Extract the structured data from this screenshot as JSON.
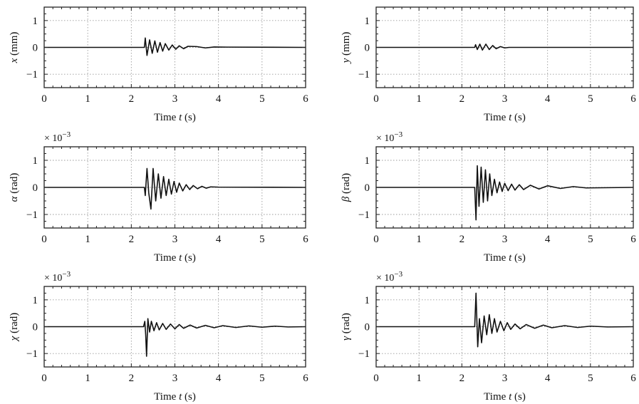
{
  "chart_data": [
    {
      "type": "line",
      "id": "x",
      "ylabel": "x (mm)",
      "ylabel_var": "x",
      "ylabel_unit": " (mm)",
      "xlabel": "Time t (s)",
      "xlabel_pre": "Time ",
      "xlabel_var": "t",
      "xlabel_post": " (s)",
      "multiplier": "",
      "xlim": [
        0,
        6
      ],
      "ylim": [
        -1.5,
        1.5
      ],
      "xticks": [
        0,
        1,
        2,
        3,
        4,
        5,
        6
      ],
      "yticks": [
        -1,
        0,
        1
      ],
      "grid": true,
      "series": [
        {
          "x": [
            0,
            2.3,
            2.32,
            2.36,
            2.42,
            2.48,
            2.54,
            2.6,
            2.66,
            2.72,
            2.78,
            2.86,
            2.94,
            3.02,
            3.1,
            3.2,
            3.3,
            3.5,
            3.7,
            3.9,
            4.2,
            6
          ],
          "values": [
            0,
            0,
            0.35,
            -0.3,
            0.28,
            -0.22,
            0.24,
            -0.18,
            0.18,
            -0.14,
            0.14,
            -0.1,
            0.09,
            -0.07,
            0.06,
            -0.05,
            0.04,
            0.03,
            -0.02,
            0.015,
            0.01,
            0
          ]
        }
      ]
    },
    {
      "type": "line",
      "id": "y",
      "ylabel": "y (mm)",
      "ylabel_var": "y",
      "ylabel_unit": " (mm)",
      "xlabel": "Time t (s)",
      "xlabel_pre": "Time ",
      "xlabel_var": "t",
      "xlabel_post": " (s)",
      "multiplier": "",
      "xlim": [
        0,
        6
      ],
      "ylim": [
        -1.5,
        1.5
      ],
      "xticks": [
        0,
        1,
        2,
        3,
        4,
        5,
        6
      ],
      "yticks": [
        -1,
        0,
        1
      ],
      "grid": true,
      "series": [
        {
          "x": [
            0,
            2.3,
            2.32,
            2.36,
            2.42,
            2.48,
            2.56,
            2.64,
            2.72,
            2.8,
            2.9,
            3.0,
            3.1,
            6
          ],
          "values": [
            0,
            0,
            0.1,
            -0.08,
            0.12,
            -0.1,
            0.12,
            -0.08,
            0.07,
            -0.05,
            0.03,
            -0.02,
            0,
            0
          ]
        }
      ]
    },
    {
      "type": "line",
      "id": "alpha",
      "ylabel": "α (rad)",
      "ylabel_var": "α",
      "ylabel_unit": " (rad)",
      "xlabel": "Time t (s)",
      "xlabel_pre": "Time ",
      "xlabel_var": "t",
      "xlabel_post": " (s)",
      "multiplier": "× 10",
      "multiplier_exp": "−3",
      "xlim": [
        0,
        6
      ],
      "ylim": [
        -1.5,
        1.5
      ],
      "xticks": [
        0,
        1,
        2,
        3,
        4,
        5,
        6
      ],
      "yticks": [
        -1,
        0,
        1
      ],
      "grid": true,
      "series": [
        {
          "x": [
            0,
            2.3,
            2.32,
            2.36,
            2.4,
            2.45,
            2.5,
            2.56,
            2.62,
            2.68,
            2.74,
            2.8,
            2.86,
            2.92,
            2.98,
            3.04,
            3.1,
            3.18,
            3.26,
            3.34,
            3.42,
            3.52,
            3.62,
            3.72,
            3.82,
            4.0,
            6
          ],
          "values": [
            0,
            0,
            -0.3,
            0.7,
            -0.2,
            -0.8,
            0.7,
            -0.5,
            0.5,
            -0.4,
            0.4,
            -0.3,
            0.3,
            -0.25,
            0.22,
            -0.18,
            0.16,
            -0.13,
            0.1,
            -0.08,
            0.07,
            -0.05,
            0.04,
            -0.03,
            0.02,
            0.01,
            0
          ]
        }
      ]
    },
    {
      "type": "line",
      "id": "beta",
      "ylabel": "β (rad)",
      "ylabel_var": "β",
      "ylabel_unit": " (rad)",
      "xlabel": "Time t (s)",
      "xlabel_pre": "Time ",
      "xlabel_var": "t",
      "xlabel_post": " (s)",
      "multiplier": "× 10",
      "multiplier_exp": "−3",
      "xlim": [
        0,
        6
      ],
      "ylim": [
        -1.5,
        1.5
      ],
      "xticks": [
        0,
        1,
        2,
        3,
        4,
        5,
        6
      ],
      "yticks": [
        -1,
        0,
        1
      ],
      "grid": true,
      "series": [
        {
          "x": [
            0,
            2.3,
            2.33,
            2.36,
            2.4,
            2.45,
            2.5,
            2.55,
            2.6,
            2.65,
            2.7,
            2.76,
            2.82,
            2.88,
            2.94,
            3.0,
            3.08,
            3.16,
            3.24,
            3.34,
            3.44,
            3.6,
            3.8,
            4.0,
            4.3,
            4.6,
            4.9,
            6
          ],
          "values": [
            0,
            0,
            -1.2,
            0.8,
            -0.7,
            0.75,
            -0.55,
            0.65,
            -0.5,
            0.5,
            -0.3,
            0.3,
            -0.2,
            0.2,
            -0.15,
            0.15,
            -0.12,
            0.12,
            -0.1,
            0.1,
            -0.08,
            0.08,
            -0.06,
            0.06,
            -0.04,
            0.03,
            -0.02,
            0
          ]
        }
      ]
    },
    {
      "type": "line",
      "id": "chi",
      "ylabel": "χ (rad)",
      "ylabel_var": "χ",
      "ylabel_unit": " (rad)",
      "xlabel": "Time t (s)",
      "xlabel_pre": "Time ",
      "xlabel_var": "t",
      "xlabel_post": " (s)",
      "multiplier": "× 10",
      "multiplier_exp": "−3",
      "xlim": [
        0,
        6
      ],
      "ylim": [
        -1.5,
        1.5
      ],
      "xticks": [
        0,
        1,
        2,
        3,
        4,
        5,
        6
      ],
      "yticks": [
        -1,
        0,
        1
      ],
      "grid": true,
      "series": [
        {
          "x": [
            0,
            2.28,
            2.31,
            2.33,
            2.35,
            2.38,
            2.42,
            2.46,
            2.52,
            2.58,
            2.64,
            2.72,
            2.8,
            2.9,
            3.0,
            3.1,
            3.2,
            3.35,
            3.5,
            3.7,
            3.9,
            4.1,
            4.4,
            4.7,
            5.0,
            5.3,
            5.6,
            6
          ],
          "values": [
            0,
            0,
            0.2,
            -0.3,
            -1.1,
            0.3,
            -0.2,
            0.2,
            -0.15,
            0.15,
            -0.12,
            0.12,
            -0.1,
            0.1,
            -0.08,
            0.08,
            -0.06,
            0.06,
            -0.05,
            0.05,
            -0.04,
            0.04,
            -0.03,
            0.03,
            -0.02,
            0.02,
            -0.01,
            0
          ]
        }
      ]
    },
    {
      "type": "line",
      "id": "gamma",
      "ylabel": "γ (rad)",
      "ylabel_var": "γ",
      "ylabel_unit": " (rad)",
      "xlabel": "Time t (s)",
      "xlabel_pre": "Time ",
      "xlabel_var": "t",
      "xlabel_post": " (s)",
      "multiplier": "× 10",
      "multiplier_exp": "−3",
      "xlim": [
        0,
        6
      ],
      "ylim": [
        -1.5,
        1.5
      ],
      "xticks": [
        0,
        1,
        2,
        3,
        4,
        5,
        6
      ],
      "yticks": [
        -1,
        0,
        1
      ],
      "grid": true,
      "series": [
        {
          "x": [
            0,
            2.3,
            2.33,
            2.37,
            2.41,
            2.46,
            2.52,
            2.58,
            2.64,
            2.7,
            2.76,
            2.82,
            2.9,
            2.98,
            3.06,
            3.14,
            3.24,
            3.36,
            3.5,
            3.7,
            3.9,
            4.1,
            4.4,
            4.7,
            5.0,
            5.4,
            6
          ],
          "values": [
            0,
            0,
            1.25,
            -0.75,
            0.3,
            -0.6,
            0.4,
            -0.3,
            0.45,
            -0.25,
            0.3,
            -0.2,
            0.2,
            -0.15,
            0.15,
            -0.1,
            0.1,
            -0.08,
            0.08,
            -0.06,
            0.06,
            -0.04,
            0.04,
            -0.03,
            0.02,
            -0.01,
            0
          ]
        }
      ]
    }
  ]
}
